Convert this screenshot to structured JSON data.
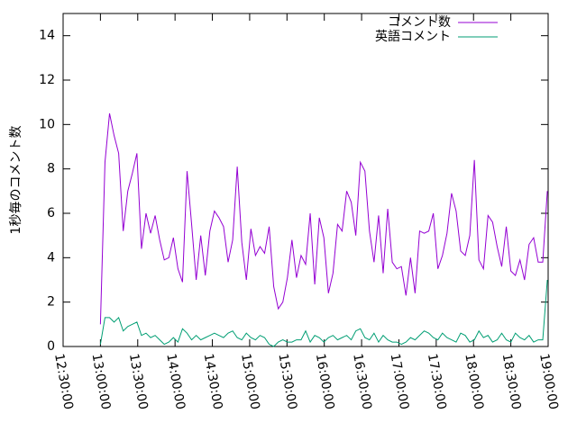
{
  "chart_data": {
    "type": "line",
    "y_label": "1秒毎のコメント数",
    "xlim": [
      "12:30:00",
      "19:00:00"
    ],
    "xticks": [
      "12:30:00",
      "13:00:00",
      "13:30:00",
      "14:00:00",
      "14:30:00",
      "15:00:00",
      "15:30:00",
      "16:00:00",
      "16:30:00",
      "17:00:00",
      "17:30:00",
      "18:00:00",
      "18:30:00",
      "19:00:00"
    ],
    "ylim": [
      0,
      15
    ],
    "yticks": [
      0,
      2,
      4,
      6,
      8,
      10,
      12,
      14
    ],
    "legend": "top-right",
    "x": [
      "13:00:00",
      "13:03:40",
      "13:07:20",
      "13:11:00",
      "13:14:40",
      "13:18:20",
      "13:22:00",
      "13:25:40",
      "13:29:20",
      "13:33:00",
      "13:36:40",
      "13:40:20",
      "13:44:00",
      "13:47:40",
      "13:51:20",
      "13:55:00",
      "13:58:40",
      "14:02:20",
      "14:06:00",
      "14:09:40",
      "14:13:20",
      "14:17:00",
      "14:20:40",
      "14:24:20",
      "14:28:00",
      "14:31:40",
      "14:35:20",
      "14:39:00",
      "14:42:40",
      "14:46:20",
      "14:50:00",
      "14:53:40",
      "14:57:20",
      "15:01:00",
      "15:04:40",
      "15:08:20",
      "15:12:00",
      "15:15:40",
      "15:19:20",
      "15:23:00",
      "15:26:40",
      "15:30:20",
      "15:34:00",
      "15:37:40",
      "15:41:20",
      "15:45:00",
      "15:48:40",
      "15:52:20",
      "15:56:00",
      "15:59:40",
      "16:03:20",
      "16:07:00",
      "16:10:40",
      "16:14:20",
      "16:18:00",
      "16:21:40",
      "16:25:20",
      "16:29:00",
      "16:32:40",
      "16:36:20",
      "16:40:00",
      "16:43:40",
      "16:47:20",
      "16:51:00",
      "16:54:40",
      "16:58:20",
      "17:02:00",
      "17:05:40",
      "17:09:20",
      "17:13:00",
      "17:16:40",
      "17:20:20",
      "17:24:00",
      "17:27:40",
      "17:31:20",
      "17:35:00",
      "17:38:40",
      "17:42:20",
      "17:46:00",
      "17:49:40",
      "17:53:20",
      "17:57:00",
      "18:00:40",
      "18:04:20",
      "18:08:00",
      "18:11:40",
      "18:15:20",
      "18:19:00",
      "18:22:40",
      "18:26:20",
      "18:30:00",
      "18:33:40",
      "18:37:20",
      "18:41:00",
      "18:44:40",
      "18:48:20",
      "18:52:00",
      "18:55:40",
      "18:59:20"
    ],
    "series": [
      {
        "name": "コメント数",
        "color": "#9400d3",
        "values": [
          1.0,
          8.3,
          10.5,
          9.5,
          8.7,
          5.2,
          7.0,
          7.8,
          8.7,
          4.4,
          6.0,
          5.1,
          5.9,
          4.8,
          3.9,
          4.0,
          4.9,
          3.5,
          2.9,
          7.9,
          5.5,
          3.0,
          5.0,
          3.2,
          5.2,
          6.1,
          5.8,
          5.4,
          3.8,
          4.8,
          8.1,
          4.7,
          3.0,
          5.3,
          4.1,
          4.5,
          4.2,
          5.4,
          2.7,
          1.7,
          2.0,
          3.1,
          4.8,
          3.1,
          4.1,
          3.7,
          6.0,
          2.8,
          5.8,
          4.9,
          2.4,
          3.3,
          5.5,
          5.2,
          7.0,
          6.5,
          5.0,
          8.3,
          7.9,
          5.2,
          3.8,
          5.9,
          3.3,
          6.2,
          3.8,
          3.5,
          3.6,
          2.3,
          4.0,
          2.4,
          5.2,
          5.1,
          5.2,
          6.0,
          3.5,
          4.1,
          5.1,
          6.9,
          6.1,
          4.3,
          4.1,
          5.0,
          8.4,
          3.9,
          3.5,
          5.9,
          5.6,
          4.5,
          3.6,
          5.4,
          3.4,
          3.2,
          3.9,
          3.0,
          4.6,
          4.9,
          3.8,
          3.8,
          7.0
        ]
      },
      {
        "name": "英語コメント",
        "color": "#009e73",
        "values": [
          0.1,
          1.3,
          1.3,
          1.1,
          1.3,
          0.7,
          0.9,
          1.0,
          1.1,
          0.5,
          0.6,
          0.4,
          0.5,
          0.3,
          0.1,
          0.2,
          0.4,
          0.2,
          0.8,
          0.6,
          0.3,
          0.5,
          0.3,
          0.4,
          0.5,
          0.6,
          0.5,
          0.4,
          0.6,
          0.7,
          0.4,
          0.3,
          0.6,
          0.4,
          0.3,
          0.5,
          0.4,
          0.1,
          0.0,
          0.2,
          0.3,
          0.2,
          0.2,
          0.3,
          0.3,
          0.7,
          0.2,
          0.5,
          0.4,
          0.2,
          0.4,
          0.5,
          0.3,
          0.4,
          0.5,
          0.3,
          0.7,
          0.8,
          0.4,
          0.3,
          0.6,
          0.2,
          0.5,
          0.3,
          0.2,
          0.2,
          0.1,
          0.2,
          0.4,
          0.3,
          0.5,
          0.7,
          0.6,
          0.4,
          0.3,
          0.6,
          0.4,
          0.3,
          0.2,
          0.6,
          0.5,
          0.2,
          0.3,
          0.7,
          0.4,
          0.5,
          0.2,
          0.3,
          0.6,
          0.3,
          0.2,
          0.6,
          0.4,
          0.3,
          0.5,
          0.2,
          0.3,
          0.3,
          3.0
        ]
      }
    ]
  }
}
